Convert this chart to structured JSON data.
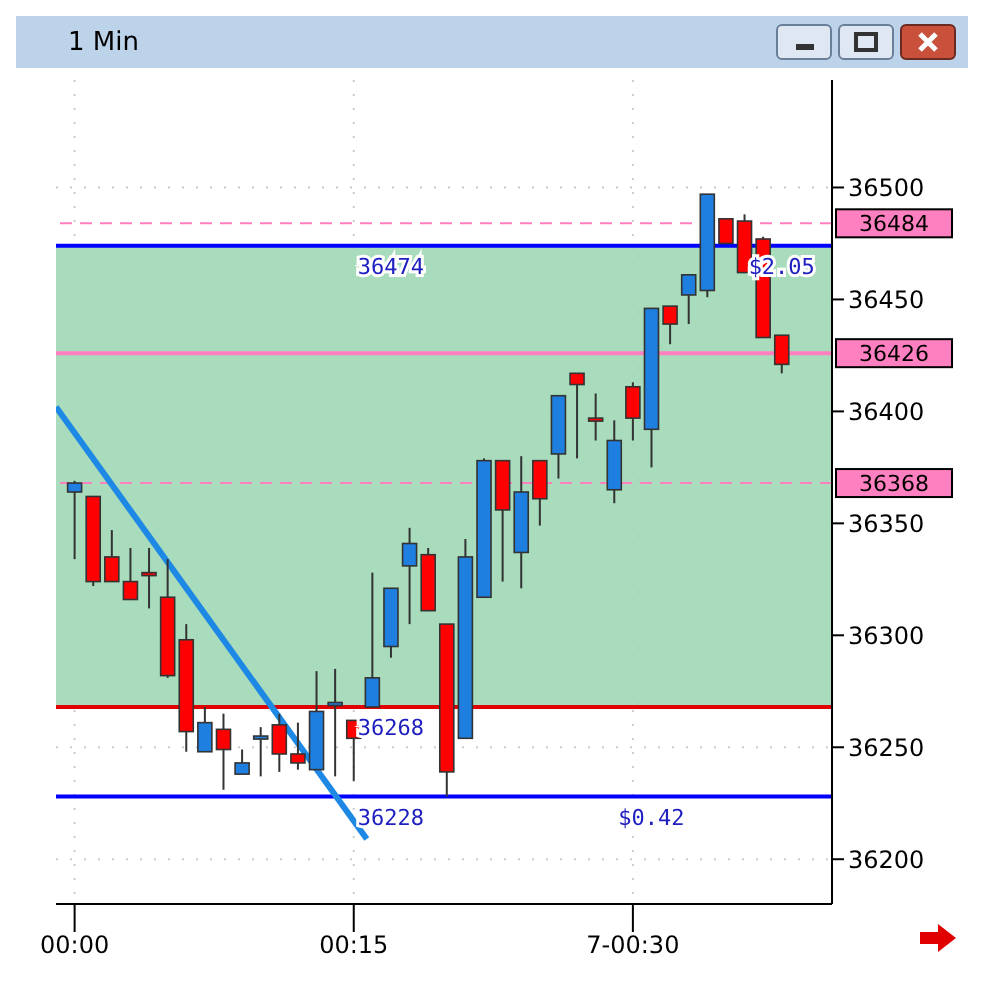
{
  "chart_data": {
    "type": "candlestick",
    "title": "1 Min",
    "x": [
      0,
      1,
      2,
      3,
      4,
      5,
      6,
      7,
      8,
      9,
      10,
      11,
      12,
      13,
      14,
      15,
      16,
      17,
      18,
      19,
      20,
      21,
      22,
      23,
      24,
      25,
      26,
      27,
      28,
      29,
      30,
      31,
      32,
      33,
      34,
      35,
      36,
      37,
      38
    ],
    "ohlc": [
      [
        36364,
        36369,
        36334,
        36368
      ],
      [
        36362,
        36362,
        36322,
        36324
      ],
      [
        36335,
        36347,
        36324,
        36324
      ],
      [
        36324,
        36339,
        36316,
        36316
      ],
      [
        36328,
        36339,
        36312,
        36327
      ],
      [
        36317,
        36334,
        36281,
        36282
      ],
      [
        36298,
        36305,
        36248,
        36257
      ],
      [
        36248,
        36268,
        36248,
        36261
      ],
      [
        36258,
        36265,
        36231,
        36249
      ],
      [
        36238,
        36249,
        36238,
        36243
      ],
      [
        36254,
        36259,
        36237,
        36255
      ],
      [
        36260,
        36265,
        36239,
        36247
      ],
      [
        36247,
        36261,
        36240,
        36243
      ],
      [
        36240,
        36284,
        36240,
        36266
      ],
      [
        36269,
        36285,
        36237,
        36270
      ],
      [
        36262,
        36262,
        36235,
        36254
      ],
      [
        36268,
        36328,
        36268,
        36281
      ],
      [
        36295,
        36321,
        36290,
        36321
      ],
      [
        36331,
        36348,
        36305,
        36341
      ],
      [
        36336,
        36339,
        36311,
        36311
      ],
      [
        36305,
        36305,
        36228,
        36239
      ],
      [
        36254,
        36343,
        36254,
        36335
      ],
      [
        36317,
        36379,
        36317,
        36378
      ],
      [
        36378,
        36378,
        36324,
        36356
      ],
      [
        36337,
        36380,
        36321,
        36364
      ],
      [
        36378,
        36378,
        36349,
        36361
      ],
      [
        36381,
        36407,
        36370,
        36407
      ],
      [
        36417,
        36417,
        36379,
        36412
      ],
      [
        36397,
        36408,
        36387,
        36396
      ],
      [
        36365,
        36396,
        36359,
        36387
      ],
      [
        36411,
        36413,
        36387,
        36397
      ],
      [
        36392,
        36446,
        36375,
        36446
      ],
      [
        36447,
        36447,
        36430,
        36439
      ],
      [
        36452,
        36461,
        36439,
        36461
      ],
      [
        36454,
        36497,
        36451,
        36497
      ],
      [
        36486,
        36486,
        36475,
        36475
      ],
      [
        36485,
        36488,
        36462,
        36462
      ],
      [
        36477,
        36478,
        36433,
        36433
      ],
      [
        36434,
        36434,
        36417,
        36421
      ]
    ],
    "colors": [
      "#1e7fe0",
      "#ff0000",
      "#ff0000",
      "#ff0000",
      "#ff0000",
      "#ff0000",
      "#ff0000",
      "#1e7fe0",
      "#ff0000",
      "#1e7fe0",
      "#1e7fe0",
      "#ff0000",
      "#ff0000",
      "#1e7fe0",
      "#1e7fe0",
      "#ff0000",
      "#1e7fe0",
      "#1e7fe0",
      "#1e7fe0",
      "#ff0000",
      "#ff0000",
      "#1e7fe0",
      "#1e7fe0",
      "#ff0000",
      "#1e7fe0",
      "#ff0000",
      "#1e7fe0",
      "#ff0000",
      "#ff0000",
      "#1e7fe0",
      "#ff0000",
      "#1e7fe0",
      "#ff0000",
      "#1e7fe0",
      "#1e7fe0",
      "#ff0000",
      "#ff0000",
      "#ff0000",
      "#ff0000"
    ],
    "series": [
      {
        "type": "line",
        "color": "#1e88e5",
        "x": [
          -1,
          15.7
        ],
        "values": [
          36402,
          36209
        ]
      }
    ],
    "xlim": [
      -1,
      40.7
    ],
    "xticks": [
      {
        "value": 0,
        "label": "00:00"
      },
      {
        "value": 15,
        "label": "00:15"
      },
      {
        "value": 30,
        "label": "7-00:30"
      }
    ],
    "ylim": [
      36180,
      36548
    ],
    "yticks": [
      36200,
      36250,
      36300,
      36350,
      36400,
      36450,
      36500
    ],
    "grid": true,
    "bands": [
      {
        "axis": "y",
        "from": 36268,
        "to": 36474,
        "color": "#9ed8b5"
      }
    ],
    "ref_lines": [
      {
        "axis": "y",
        "value": 36484,
        "label": "36484",
        "color": "#ff80c0",
        "line_style": "dashed"
      },
      {
        "axis": "y",
        "value": 36426,
        "label": "36426",
        "color": "#ff80c0",
        "line_style": "solid"
      },
      {
        "axis": "y",
        "value": 36368,
        "label": "36368",
        "color": "#ff80c0",
        "line_style": "dashed"
      },
      {
        "axis": "y",
        "value": 36474,
        "color": "#0000ff",
        "line_style": "solid"
      },
      {
        "axis": "y",
        "value": 36268,
        "color": "#e00000",
        "line_style": "solid"
      },
      {
        "axis": "y",
        "value": 36228,
        "color": "#0000ff",
        "line_style": "solid"
      }
    ],
    "annotations": [
      {
        "text": "36474",
        "x": 17,
        "y": 36474
      },
      {
        "text": "36268",
        "x": 17,
        "y": 36268
      },
      {
        "text": "36228",
        "x": 17,
        "y": 36228
      },
      {
        "text": "$2.05",
        "x": 38,
        "y": 36474
      },
      {
        "text": "$0.42",
        "x": 31,
        "y": 36228
      }
    ]
  }
}
